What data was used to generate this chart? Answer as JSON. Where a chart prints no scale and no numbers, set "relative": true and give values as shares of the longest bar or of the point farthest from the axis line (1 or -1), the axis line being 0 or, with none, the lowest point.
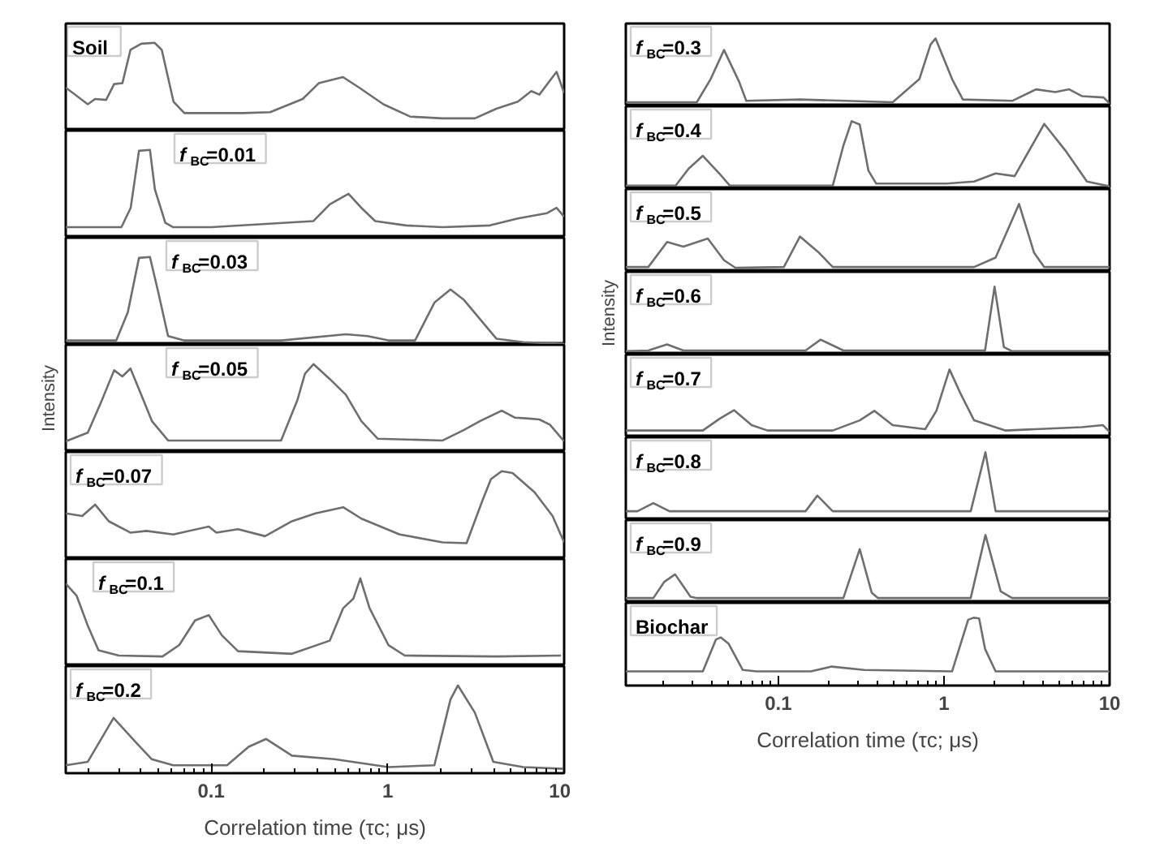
{
  "chart_data": [
    {
      "type": "line",
      "title": "Soil",
      "relative": true,
      "log": "x",
      "xlim": [
        0.015,
        10
      ],
      "tick_labels": false,
      "x": [
        0.015,
        0.02,
        0.022,
        0.0254,
        0.0282,
        0.0314,
        0.0349,
        0.0402,
        0.0479,
        0.0525,
        0.0612,
        0.0705,
        0.1,
        0.152,
        0.216,
        0.33,
        0.407,
        0.558,
        0.69,
        0.946,
        1.34,
        2.05,
        3.12,
        4.13,
        5.47,
        6.52,
        7.24,
        9.06,
        10
      ],
      "series": [
        {
          "color": "#6e6e6e",
          "values": [
            0.49,
            0.3,
            0.36,
            0.35,
            0.53,
            0.54,
            0.92,
            0.99,
            1.0,
            0.92,
            0.33,
            0.2,
            0.2,
            0.2,
            0.21,
            0.36,
            0.54,
            0.61,
            0.49,
            0.3,
            0.16,
            0.14,
            0.14,
            0.25,
            0.33,
            0.45,
            0.41,
            0.67,
            0.43
          ]
        }
      ]
    },
    {
      "type": "line",
      "title": "f$_{BC}$=0.01",
      "relative": true,
      "log": "x",
      "xlim": [
        0.015,
        10
      ],
      "tick_labels": false,
      "x": [
        0.015,
        0.031,
        0.035,
        0.039,
        0.045,
        0.048,
        0.055,
        0.061,
        0.1,
        0.38,
        0.47,
        0.6,
        0.71,
        0.85,
        1.27,
        2.05,
        3.8,
        5.47,
        8.0,
        9.06,
        10
      ],
      "series": [
        {
          "color": "#6e6e6e",
          "values": [
            0.12,
            0.12,
            0.34,
            0.99,
            1.0,
            0.55,
            0.17,
            0.12,
            0.12,
            0.19,
            0.38,
            0.5,
            0.34,
            0.19,
            0.14,
            0.12,
            0.14,
            0.22,
            0.28,
            0.34,
            0.24
          ]
        }
      ]
    },
    {
      "type": "line",
      "title": "f$_{BC}$=0.03",
      "relative": true,
      "log": "x",
      "xlim": [
        0.015,
        10
      ],
      "tick_labels": false,
      "x": [
        0.015,
        0.029,
        0.0337,
        0.039,
        0.045,
        0.05,
        0.057,
        0.07,
        0.25,
        0.58,
        0.77,
        1.01,
        1.43,
        1.84,
        2.27,
        2.71,
        4.13,
        5.87,
        10
      ],
      "series": [
        {
          "color": "#6e6e6e",
          "values": [
            0.05,
            0.05,
            0.37,
            0.99,
            1.0,
            0.61,
            0.1,
            0.05,
            0.05,
            0.12,
            0.1,
            0.05,
            0.05,
            0.48,
            0.63,
            0.51,
            0.07,
            0.03,
            0.01
          ]
        }
      ]
    },
    {
      "type": "line",
      "title": "f$_{BC}$=0.05",
      "ylabel": "Intensity",
      "relative": true,
      "log": "x",
      "xlim": [
        0.015,
        10
      ],
      "tick_labels": false,
      "x": [
        0.015,
        0.02,
        0.0237,
        0.0282,
        0.0314,
        0.0349,
        0.0402,
        0.0462,
        0.057,
        0.249,
        0.308,
        0.34,
        0.38,
        0.47,
        0.58,
        0.71,
        0.88,
        2.05,
        2.71,
        3.33,
        4.43,
        5.27,
        6.3,
        7.24,
        8.3,
        10
      ],
      "series": [
        {
          "color": "#6e6e6e",
          "values": [
            0.12,
            0.22,
            0.56,
            0.93,
            0.86,
            0.95,
            0.65,
            0.35,
            0.13,
            0.13,
            0.59,
            0.89,
            1.0,
            0.83,
            0.65,
            0.35,
            0.15,
            0.13,
            0.25,
            0.35,
            0.47,
            0.39,
            0.38,
            0.37,
            0.31,
            0.12
          ]
        }
      ]
    },
    {
      "type": "line",
      "title": "f$_{BC}$=0.07",
      "relative": true,
      "log": "x",
      "xlim": [
        0.015,
        10
      ],
      "tick_labels": false,
      "x": [
        0.015,
        0.0186,
        0.022,
        0.0263,
        0.035,
        0.043,
        0.061,
        0.097,
        0.107,
        0.142,
        0.202,
        0.287,
        0.39,
        0.56,
        0.71,
        1.17,
        2.05,
        2.8,
        3.45,
        3.85,
        4.43,
        5.1,
        6.8,
        8.6,
        10
      ],
      "series": [
        {
          "color": "#6e6e6e",
          "values": [
            0.52,
            0.49,
            0.62,
            0.43,
            0.3,
            0.32,
            0.28,
            0.37,
            0.3,
            0.34,
            0.26,
            0.43,
            0.52,
            0.59,
            0.46,
            0.28,
            0.19,
            0.18,
            0.67,
            0.91,
            1.0,
            0.98,
            0.76,
            0.49,
            0.19
          ]
        }
      ]
    },
    {
      "type": "line",
      "title": "f$_{BC}$=0.1",
      "relative": true,
      "log": "x",
      "xlim": [
        0.015,
        10
      ],
      "tick_labels": false,
      "x": [
        0.015,
        0.0173,
        0.02,
        0.023,
        0.03,
        0.053,
        0.066,
        0.081,
        0.097,
        0.115,
        0.142,
        0.287,
        0.47,
        0.56,
        0.64,
        0.7,
        0.79,
        1.01,
        1.25,
        4.13,
        9.6
      ],
      "series": [
        {
          "color": "#6e6e6e",
          "values": [
            0.94,
            0.8,
            0.46,
            0.18,
            0.12,
            0.11,
            0.24,
            0.52,
            0.58,
            0.35,
            0.17,
            0.14,
            0.29,
            0.66,
            0.77,
            1.0,
            0.66,
            0.24,
            0.12,
            0.11,
            0.12
          ]
        }
      ]
    },
    {
      "type": "line",
      "title": "f$_{BC}$=0.2",
      "xlabel": "Correlation time (τc; μs)",
      "relative": true,
      "log": "x",
      "xlim": [
        0.015,
        10
      ],
      "xticks": [
        0.1,
        1,
        10
      ],
      "tick_labels": "x",
      "x": [
        0.015,
        0.02,
        0.028,
        0.0375,
        0.046,
        0.061,
        0.123,
        0.163,
        0.205,
        0.287,
        0.5,
        1.01,
        1.84,
        2.27,
        2.5,
        3.12,
        3.97,
        5.87,
        10
      ],
      "series": [
        {
          "color": "#6e6e6e",
          "values": [
            0.09,
            0.13,
            0.63,
            0.35,
            0.16,
            0.09,
            0.09,
            0.3,
            0.39,
            0.2,
            0.16,
            0.07,
            0.09,
            0.84,
            1.0,
            0.69,
            0.13,
            0.07,
            0.05
          ]
        }
      ]
    },
    {
      "type": "line",
      "title": "f$_{BC}$=0.3",
      "relative": true,
      "log": "x",
      "xlim": [
        0.012,
        10
      ],
      "tick_labels": false,
      "x": [
        0.012,
        0.0322,
        0.039,
        0.047,
        0.058,
        0.064,
        0.135,
        0.49,
        0.71,
        0.83,
        0.89,
        1.12,
        1.3,
        2.58,
        3.6,
        4.7,
        5.7,
        6.8,
        9.2,
        10
      ],
      "series": [
        {
          "color": "#6e6e6e",
          "values": [
            0.06,
            0.06,
            0.4,
            0.83,
            0.36,
            0.08,
            0.1,
            0.06,
            0.4,
            0.91,
            1.0,
            0.4,
            0.1,
            0.08,
            0.25,
            0.21,
            0.25,
            0.15,
            0.13,
            0.04
          ]
        }
      ]
    },
    {
      "type": "line",
      "title": "f$_{BC}$=0.4",
      "relative": true,
      "log": "x",
      "xlim": [
        0.012,
        10
      ],
      "tick_labels": false,
      "x": [
        0.012,
        0.024,
        0.0287,
        0.035,
        0.044,
        0.051,
        0.213,
        0.247,
        0.277,
        0.31,
        0.35,
        0.39,
        1.04,
        1.52,
        2.05,
        2.67,
        4.03,
        5.4,
        7.3,
        10
      ],
      "series": [
        {
          "color": "#6e6e6e",
          "values": [
            0.05,
            0.05,
            0.3,
            0.49,
            0.23,
            0.05,
            0.05,
            0.64,
            1.0,
            0.95,
            0.27,
            0.08,
            0.08,
            0.11,
            0.23,
            0.19,
            0.96,
            0.57,
            0.11,
            0.04
          ]
        }
      ]
    },
    {
      "type": "line",
      "title": "f$_{BC}$=0.5",
      "relative": true,
      "log": "x",
      "xlim": [
        0.012,
        10
      ],
      "tick_labels": false,
      "x": [
        0.012,
        0.0164,
        0.0213,
        0.0267,
        0.0375,
        0.047,
        0.055,
        0.108,
        0.135,
        0.176,
        0.213,
        1.52,
        2.05,
        2.84,
        3.5,
        4.03,
        10
      ],
      "series": [
        {
          "color": "#6e6e6e",
          "values": [
            0.07,
            0.07,
            0.44,
            0.37,
            0.49,
            0.17,
            0.06,
            0.07,
            0.52,
            0.28,
            0.07,
            0.07,
            0.21,
            1.0,
            0.28,
            0.07,
            0.07
          ]
        }
      ]
    },
    {
      "type": "line",
      "title": "f$_{BC}$=0.6",
      "ylabel": "Intensity",
      "relative": true,
      "log": "x",
      "xlim": [
        0.012,
        10
      ],
      "tick_labels": false,
      "x": [
        0.012,
        0.0164,
        0.0213,
        0.0267,
        0.146,
        0.18,
        0.247,
        1.77,
        2.02,
        2.3,
        2.58,
        10
      ],
      "series": [
        {
          "color": "#6e6e6e",
          "values": [
            0.05,
            0.06,
            0.15,
            0.06,
            0.06,
            0.22,
            0.06,
            0.06,
            1.0,
            0.11,
            0.05,
            0.05
          ]
        }
      ]
    },
    {
      "type": "line",
      "title": "f$_{BC}$=0.7",
      "relative": true,
      "log": "x",
      "xlim": [
        0.012,
        10
      ],
      "tick_labels": false,
      "x": [
        0.012,
        0.035,
        0.044,
        0.054,
        0.069,
        0.086,
        0.213,
        0.31,
        0.38,
        0.49,
        0.77,
        0.9,
        1.08,
        1.25,
        1.52,
        2.36,
        6.8,
        9.1,
        10
      ],
      "series": [
        {
          "color": "#6e6e6e",
          "values": [
            0.1,
            0.1,
            0.27,
            0.4,
            0.18,
            0.1,
            0.1,
            0.25,
            0.39,
            0.18,
            0.12,
            0.39,
            1.0,
            0.66,
            0.25,
            0.1,
            0.15,
            0.18,
            0.08
          ]
        }
      ]
    },
    {
      "type": "line",
      "title": "f$_{BC}$=0.8",
      "relative": true,
      "log": "x",
      "xlim": [
        0.012,
        10
      ],
      "tick_labels": false,
      "x": [
        0.012,
        0.0141,
        0.0176,
        0.022,
        0.146,
        0.172,
        0.213,
        1.45,
        1.78,
        2.05,
        10
      ],
      "series": [
        {
          "color": "#6e6e6e",
          "values": [
            0.13,
            0.13,
            0.25,
            0.13,
            0.13,
            0.36,
            0.13,
            0.13,
            1.0,
            0.13,
            0.13
          ]
        }
      ]
    },
    {
      "type": "line",
      "title": "f$_{BC}$=0.9",
      "relative": true,
      "log": "x",
      "xlim": [
        0.012,
        10
      ],
      "tick_labels": false,
      "x": [
        0.012,
        0.0176,
        0.0205,
        0.0238,
        0.0295,
        0.0322,
        0.247,
        0.31,
        0.366,
        0.4,
        1.45,
        1.78,
        2.2,
        2.58,
        10
      ],
      "series": [
        {
          "color": "#6e6e6e",
          "values": [
            0.07,
            0.07,
            0.31,
            0.42,
            0.09,
            0.07,
            0.07,
            0.79,
            0.15,
            0.07,
            0.07,
            1.0,
            0.17,
            0.07,
            0.07
          ]
        }
      ]
    },
    {
      "type": "line",
      "title": "Biochar",
      "xlabel": "Correlation time (τc; μs)",
      "relative": true,
      "log": "x",
      "xlim": [
        0.012,
        10
      ],
      "xticks": [
        0.1,
        1,
        10
      ],
      "tick_labels": "x",
      "x": [
        0.012,
        0.035,
        0.042,
        0.045,
        0.05,
        0.061,
        0.074,
        0.157,
        0.21,
        0.33,
        1.12,
        1.4,
        1.51,
        1.63,
        1.77,
        2.05,
        10
      ],
      "series": [
        {
          "color": "#6e6e6e",
          "values": [
            0.21,
            0.21,
            0.68,
            0.71,
            0.62,
            0.23,
            0.21,
            0.21,
            0.28,
            0.23,
            0.21,
            0.97,
            1.0,
            0.99,
            0.54,
            0.21,
            0.21
          ]
        }
      ]
    }
  ]
}
